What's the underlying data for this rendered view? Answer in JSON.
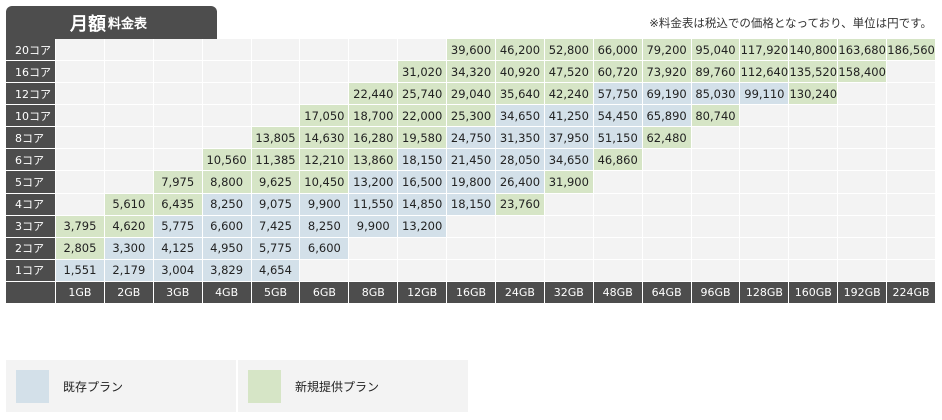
{
  "header": {
    "title_main": "月額",
    "title_sub": "料金表",
    "note": "※料金表は税込での価格となっており、単位は円です。"
  },
  "columns": [
    "1GB",
    "2GB",
    "3GB",
    "4GB",
    "5GB",
    "6GB",
    "8GB",
    "12GB",
    "16GB",
    "24GB",
    "32GB",
    "48GB",
    "64GB",
    "96GB",
    "128GB",
    "160GB",
    "192GB",
    "224GB"
  ],
  "rows": [
    {
      "label": "20コア",
      "cells": [
        null,
        null,
        null,
        null,
        null,
        null,
        null,
        null,
        {
          "v": "39,600",
          "t": "new"
        },
        {
          "v": "46,200",
          "t": "new"
        },
        {
          "v": "52,800",
          "t": "new"
        },
        {
          "v": "66,000",
          "t": "new"
        },
        {
          "v": "79,200",
          "t": "new"
        },
        {
          "v": "95,040",
          "t": "new"
        },
        {
          "v": "117,920",
          "t": "new"
        },
        {
          "v": "140,800",
          "t": "new"
        },
        {
          "v": "163,680",
          "t": "new"
        },
        {
          "v": "186,560",
          "t": "new"
        }
      ]
    },
    {
      "label": "16コア",
      "cells": [
        null,
        null,
        null,
        null,
        null,
        null,
        null,
        {
          "v": "31,020",
          "t": "new"
        },
        {
          "v": "34,320",
          "t": "new"
        },
        {
          "v": "40,920",
          "t": "new"
        },
        {
          "v": "47,520",
          "t": "new"
        },
        {
          "v": "60,720",
          "t": "new"
        },
        {
          "v": "73,920",
          "t": "new"
        },
        {
          "v": "89,760",
          "t": "new"
        },
        {
          "v": "112,640",
          "t": "new"
        },
        {
          "v": "135,520",
          "t": "new"
        },
        {
          "v": "158,400",
          "t": "new"
        },
        null
      ]
    },
    {
      "label": "12コア",
      "cells": [
        null,
        null,
        null,
        null,
        null,
        null,
        {
          "v": "22,440",
          "t": "new"
        },
        {
          "v": "25,740",
          "t": "new"
        },
        {
          "v": "29,040",
          "t": "new"
        },
        {
          "v": "35,640",
          "t": "new"
        },
        {
          "v": "42,240",
          "t": "new"
        },
        {
          "v": "57,750",
          "t": "existing"
        },
        {
          "v": "69,190",
          "t": "existing"
        },
        {
          "v": "85,030",
          "t": "existing"
        },
        {
          "v": "99,110",
          "t": "existing"
        },
        {
          "v": "130,240",
          "t": "new"
        },
        null,
        null
      ]
    },
    {
      "label": "10コア",
      "cells": [
        null,
        null,
        null,
        null,
        null,
        {
          "v": "17,050",
          "t": "new"
        },
        {
          "v": "18,700",
          "t": "new"
        },
        {
          "v": "22,000",
          "t": "new"
        },
        {
          "v": "25,300",
          "t": "new"
        },
        {
          "v": "34,650",
          "t": "existing"
        },
        {
          "v": "41,250",
          "t": "existing"
        },
        {
          "v": "54,450",
          "t": "existing"
        },
        {
          "v": "65,890",
          "t": "existing"
        },
        {
          "v": "80,740",
          "t": "new"
        },
        null,
        null,
        null,
        null
      ]
    },
    {
      "label": "8コア",
      "cells": [
        null,
        null,
        null,
        null,
        {
          "v": "13,805",
          "t": "new"
        },
        {
          "v": "14,630",
          "t": "new"
        },
        {
          "v": "16,280",
          "t": "new"
        },
        {
          "v": "19,580",
          "t": "new"
        },
        {
          "v": "24,750",
          "t": "existing"
        },
        {
          "v": "31,350",
          "t": "existing"
        },
        {
          "v": "37,950",
          "t": "existing"
        },
        {
          "v": "51,150",
          "t": "existing"
        },
        {
          "v": "62,480",
          "t": "new"
        },
        null,
        null,
        null,
        null,
        null
      ]
    },
    {
      "label": "6コア",
      "cells": [
        null,
        null,
        null,
        {
          "v": "10,560",
          "t": "new"
        },
        {
          "v": "11,385",
          "t": "new"
        },
        {
          "v": "12,210",
          "t": "new"
        },
        {
          "v": "13,860",
          "t": "new"
        },
        {
          "v": "18,150",
          "t": "existing"
        },
        {
          "v": "21,450",
          "t": "existing"
        },
        {
          "v": "28,050",
          "t": "existing"
        },
        {
          "v": "34,650",
          "t": "existing"
        },
        {
          "v": "46,860",
          "t": "new"
        },
        null,
        null,
        null,
        null,
        null,
        null
      ]
    },
    {
      "label": "5コア",
      "cells": [
        null,
        null,
        {
          "v": "7,975",
          "t": "new"
        },
        {
          "v": "8,800",
          "t": "new"
        },
        {
          "v": "9,625",
          "t": "new"
        },
        {
          "v": "10,450",
          "t": "new"
        },
        {
          "v": "13,200",
          "t": "existing"
        },
        {
          "v": "16,500",
          "t": "existing"
        },
        {
          "v": "19,800",
          "t": "existing"
        },
        {
          "v": "26,400",
          "t": "existing"
        },
        {
          "v": "31,900",
          "t": "new"
        },
        null,
        null,
        null,
        null,
        null,
        null,
        null
      ]
    },
    {
      "label": "4コア",
      "cells": [
        null,
        {
          "v": "5,610",
          "t": "new"
        },
        {
          "v": "6,435",
          "t": "new"
        },
        {
          "v": "8,250",
          "t": "existing"
        },
        {
          "v": "9,075",
          "t": "existing"
        },
        {
          "v": "9,900",
          "t": "existing"
        },
        {
          "v": "11,550",
          "t": "existing"
        },
        {
          "v": "14,850",
          "t": "existing"
        },
        {
          "v": "18,150",
          "t": "existing"
        },
        {
          "v": "23,760",
          "t": "new"
        },
        null,
        null,
        null,
        null,
        null,
        null,
        null,
        null
      ]
    },
    {
      "label": "3コア",
      "cells": [
        {
          "v": "3,795",
          "t": "new"
        },
        {
          "v": "4,620",
          "t": "new"
        },
        {
          "v": "5,775",
          "t": "existing"
        },
        {
          "v": "6,600",
          "t": "existing"
        },
        {
          "v": "7,425",
          "t": "existing"
        },
        {
          "v": "8,250",
          "t": "existing"
        },
        {
          "v": "9,900",
          "t": "existing"
        },
        {
          "v": "13,200",
          "t": "existing"
        },
        null,
        null,
        null,
        null,
        null,
        null,
        null,
        null,
        null,
        null
      ]
    },
    {
      "label": "2コア",
      "cells": [
        {
          "v": "2,805",
          "t": "new"
        },
        {
          "v": "3,300",
          "t": "existing"
        },
        {
          "v": "4,125",
          "t": "existing"
        },
        {
          "v": "4,950",
          "t": "existing"
        },
        {
          "v": "5,775",
          "t": "existing"
        },
        {
          "v": "6,600",
          "t": "existing"
        },
        null,
        null,
        null,
        null,
        null,
        null,
        null,
        null,
        null,
        null,
        null,
        null
      ]
    },
    {
      "label": "1コア",
      "cells": [
        {
          "v": "1,551",
          "t": "existing"
        },
        {
          "v": "2,179",
          "t": "existing"
        },
        {
          "v": "3,004",
          "t": "existing"
        },
        {
          "v": "3,829",
          "t": "existing"
        },
        {
          "v": "4,654",
          "t": "existing"
        },
        null,
        null,
        null,
        null,
        null,
        null,
        null,
        null,
        null,
        null,
        null,
        null,
        null
      ]
    }
  ],
  "legend": {
    "existing_label": "既存プラン",
    "new_label": "新規提供プラン"
  },
  "colors": {
    "header_bg": "#4d4d4d",
    "existing": "#d3e0e9",
    "new": "#d6e5c6",
    "empty": "#f3f3f3"
  }
}
